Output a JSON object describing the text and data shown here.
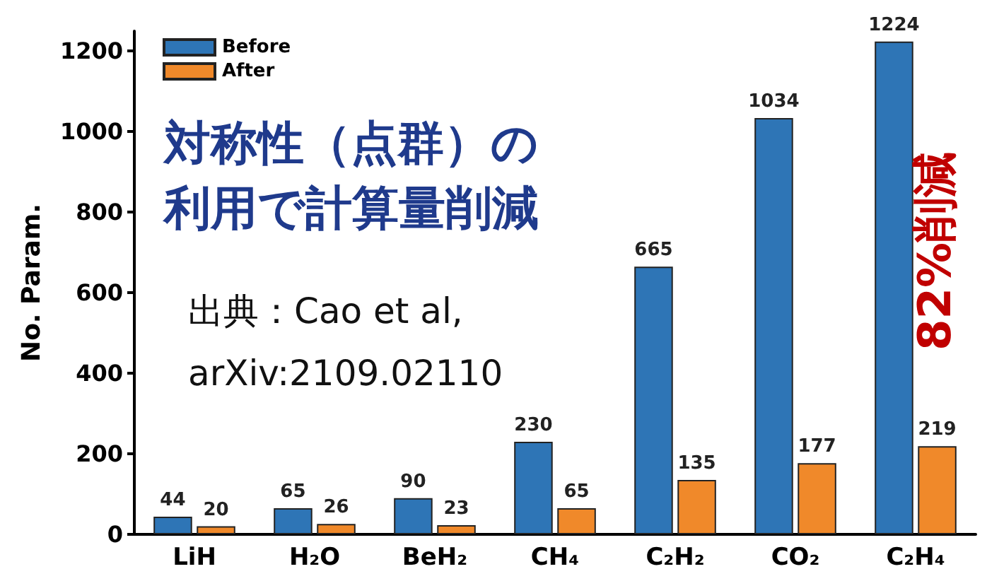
{
  "chart_data": {
    "type": "bar",
    "ylabel": "No. Param.",
    "categories": [
      "LiH",
      "H₂O",
      "BeH₂",
      "CH₄",
      "C₂H₂",
      "CO₂",
      "C₂H₄"
    ],
    "series": [
      {
        "name": "Before",
        "color": "#2e75b6",
        "values": [
          44,
          65,
          90,
          230,
          665,
          1034,
          1224
        ]
      },
      {
        "name": "After",
        "color": "#f0892a",
        "values": [
          20,
          26,
          23,
          65,
          135,
          177,
          219
        ]
      }
    ],
    "ylim": [
      0,
      1250
    ],
    "yticks": [
      0,
      200,
      400,
      600,
      800,
      1000,
      1200
    ],
    "data_labels": true,
    "grid": false,
    "legend": "top left",
    "annotations": [
      "対称性（点群）の",
      "利用で計算量削減",
      "出典：Cao et al,",
      "arXiv:2109.02110",
      "82%削減"
    ]
  }
}
